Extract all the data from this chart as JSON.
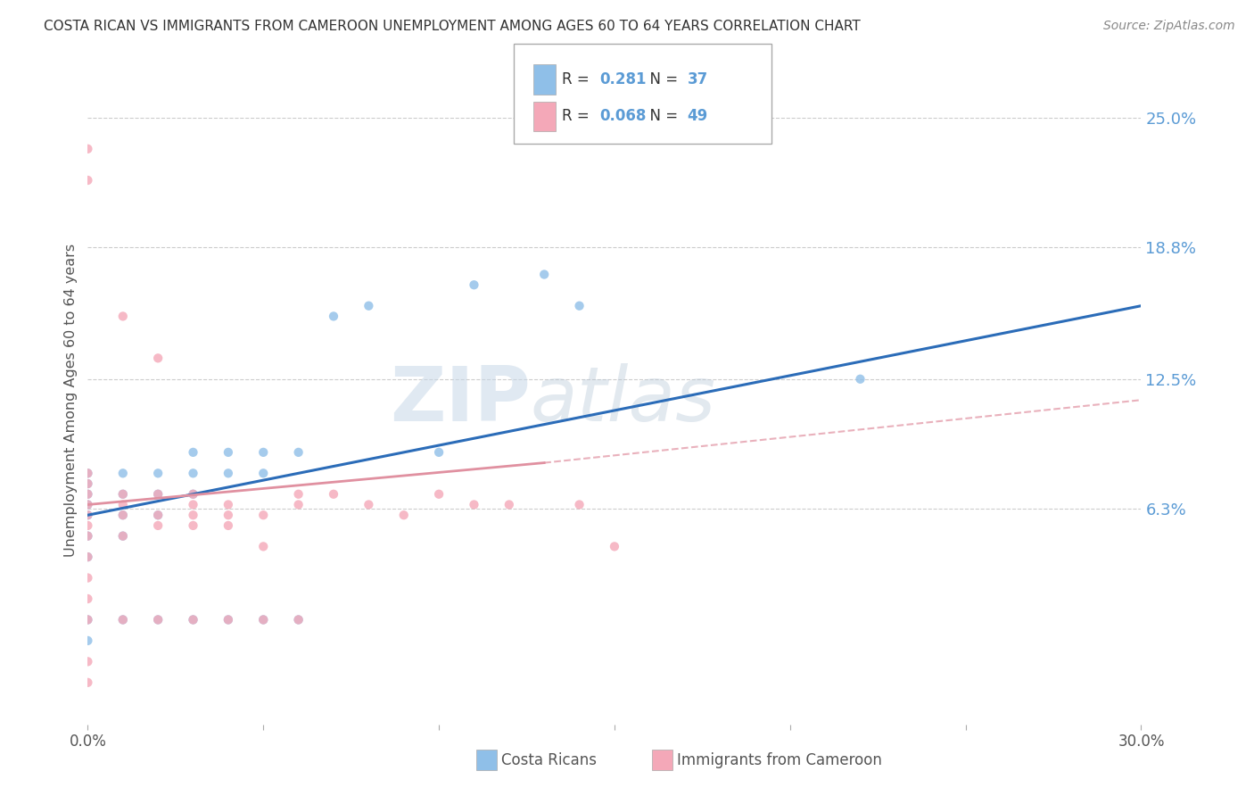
{
  "title": "COSTA RICAN VS IMMIGRANTS FROM CAMEROON UNEMPLOYMENT AMONG AGES 60 TO 64 YEARS CORRELATION CHART",
  "source": "Source: ZipAtlas.com",
  "ylabel": "Unemployment Among Ages 60 to 64 years",
  "xlim": [
    0.0,
    0.3
  ],
  "ylim": [
    -0.04,
    0.27
  ],
  "ytick_labels_right": [
    "6.3%",
    "12.5%",
    "18.8%",
    "25.0%"
  ],
  "ytick_vals_right": [
    0.063,
    0.125,
    0.188,
    0.25
  ],
  "R_blue": 0.281,
  "N_blue": 37,
  "R_pink": 0.068,
  "N_pink": 49,
  "blue_color": "#8fbfe8",
  "pink_color": "#f4a8b8",
  "trend_blue_color": "#2b6cb8",
  "trend_pink_color": "#e090a0",
  "legend_label_blue": "Costa Ricans",
  "legend_label_pink": "Immigrants from Cameroon",
  "watermark_zip": "ZIP",
  "watermark_atlas": "atlas",
  "blue_scatter_x": [
    0.0,
    0.0,
    0.0,
    0.0,
    0.0,
    0.0,
    0.0,
    0.0,
    0.01,
    0.01,
    0.01,
    0.01,
    0.02,
    0.02,
    0.02,
    0.03,
    0.03,
    0.03,
    0.04,
    0.04,
    0.05,
    0.05,
    0.06,
    0.07,
    0.08,
    0.1,
    0.11,
    0.13,
    0.14,
    0.22,
    0.0,
    0.01,
    0.02,
    0.03,
    0.04,
    0.05,
    0.06
  ],
  "blue_scatter_y": [
    0.04,
    0.05,
    0.06,
    0.065,
    0.07,
    0.075,
    0.08,
    0.0,
    0.05,
    0.06,
    0.07,
    0.08,
    0.06,
    0.07,
    0.08,
    0.07,
    0.08,
    0.09,
    0.08,
    0.09,
    0.08,
    0.09,
    0.09,
    0.155,
    0.16,
    0.09,
    0.17,
    0.175,
    0.16,
    0.125,
    0.01,
    0.01,
    0.01,
    0.01,
    0.01,
    0.01,
    0.01
  ],
  "pink_scatter_x": [
    0.0,
    0.0,
    0.0,
    0.0,
    0.0,
    0.0,
    0.0,
    0.0,
    0.0,
    0.0,
    0.0,
    0.0,
    0.01,
    0.01,
    0.01,
    0.01,
    0.01,
    0.02,
    0.02,
    0.02,
    0.02,
    0.03,
    0.03,
    0.03,
    0.03,
    0.04,
    0.04,
    0.04,
    0.05,
    0.05,
    0.06,
    0.06,
    0.07,
    0.08,
    0.09,
    0.1,
    0.11,
    0.12,
    0.14,
    0.15,
    0.0,
    0.0,
    0.0,
    0.01,
    0.02,
    0.03,
    0.04,
    0.05,
    0.06
  ],
  "pink_scatter_y": [
    0.04,
    0.05,
    0.055,
    0.06,
    0.065,
    0.07,
    0.075,
    0.08,
    -0.01,
    -0.02,
    0.22,
    0.235,
    0.05,
    0.06,
    0.065,
    0.07,
    0.155,
    0.055,
    0.06,
    0.07,
    0.135,
    0.055,
    0.06,
    0.065,
    0.07,
    0.055,
    0.06,
    0.065,
    0.045,
    0.06,
    0.065,
    0.07,
    0.07,
    0.065,
    0.06,
    0.07,
    0.065,
    0.065,
    0.065,
    0.045,
    0.01,
    0.02,
    0.03,
    0.01,
    0.01,
    0.01,
    0.01,
    0.01,
    0.01
  ],
  "background_color": "#ffffff",
  "grid_color": "#cccccc"
}
